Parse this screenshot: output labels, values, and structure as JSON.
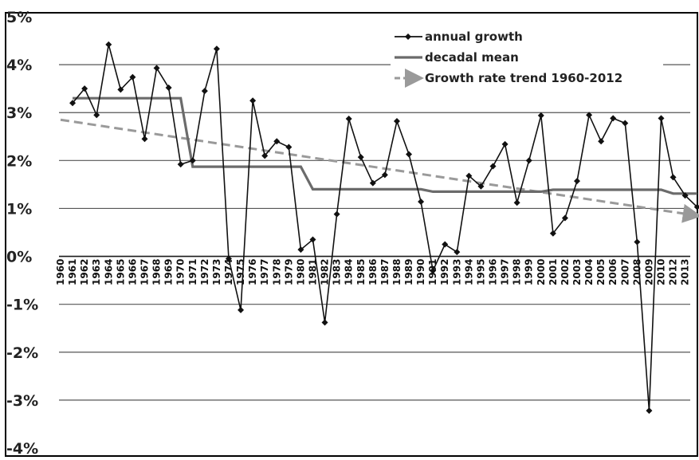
{
  "chart_data": {
    "type": "line",
    "title": "",
    "xlabel": "",
    "ylabel": "",
    "ylim": [
      -4,
      5
    ],
    "y_ticks": [
      "5%",
      "4%",
      "3%",
      "2%",
      "1%",
      "0%",
      "-1%",
      "-2%",
      "-3%",
      "-4%"
    ],
    "y_tick_values": [
      5,
      4,
      3,
      2,
      1,
      0,
      -1,
      -2,
      -3,
      -4
    ],
    "grid": true,
    "legend_position": "top-right",
    "x": [
      "1960",
      "1961",
      "1962",
      "1963",
      "1964",
      "1965",
      "1966",
      "1967",
      "1968",
      "1969",
      "1970",
      "1971",
      "1972",
      "1973",
      "1974",
      "1975",
      "1976",
      "1977",
      "1978",
      "1979",
      "1980",
      "1981",
      "1982",
      "1983",
      "1984",
      "1985",
      "1986",
      "1987",
      "1988",
      "1989",
      "1990",
      "1991",
      "1992",
      "1993",
      "1994",
      "1995",
      "1996",
      "1997",
      "1998",
      "1999",
      "2000",
      "2001",
      "2002",
      "2003",
      "2004",
      "2005",
      "2006",
      "2007",
      "2008",
      "2009",
      "2010",
      "2012",
      "2013"
    ],
    "series": [
      {
        "name": "annual growth",
        "color": "#111111",
        "style": "solid-with-diamond-markers",
        "points": [
          [
            1961,
            3.2
          ],
          [
            1962,
            3.5
          ],
          [
            1963,
            2.95
          ],
          [
            1964,
            4.42
          ],
          [
            1965,
            3.48
          ],
          [
            1966,
            3.74
          ],
          [
            1967,
            2.45
          ],
          [
            1968,
            3.93
          ],
          [
            1969,
            3.52
          ],
          [
            1970,
            1.92
          ],
          [
            1971,
            2.0
          ],
          [
            1972,
            3.45
          ],
          [
            1973,
            4.33
          ],
          [
            1974,
            -0.05
          ],
          [
            1975,
            -1.12
          ],
          [
            1976,
            3.25
          ],
          [
            1977,
            2.1
          ],
          [
            1978,
            2.4
          ],
          [
            1979,
            2.28
          ],
          [
            1980,
            0.14
          ],
          [
            1981,
            0.35
          ],
          [
            1982,
            -1.38
          ],
          [
            1983,
            0.88
          ],
          [
            1984,
            2.87
          ],
          [
            1985,
            2.07
          ],
          [
            1986,
            1.53
          ],
          [
            1987,
            1.7
          ],
          [
            1988,
            2.82
          ],
          [
            1989,
            2.13
          ],
          [
            1990,
            1.14
          ],
          [
            1991,
            -0.3
          ],
          [
            1992,
            0.25
          ],
          [
            1993,
            0.09
          ],
          [
            1994,
            1.68
          ],
          [
            1995,
            1.46
          ],
          [
            1996,
            1.88
          ],
          [
            1997,
            2.34
          ],
          [
            1998,
            1.12
          ],
          [
            1999,
            2.0
          ],
          [
            2000,
            2.94
          ],
          [
            2001,
            0.48
          ],
          [
            2002,
            0.8
          ],
          [
            2003,
            1.57
          ],
          [
            2004,
            2.95
          ],
          [
            2005,
            2.4
          ],
          [
            2006,
            2.88
          ],
          [
            2007,
            2.78
          ],
          [
            2008,
            0.3
          ],
          [
            2009,
            -3.22
          ],
          [
            2010,
            2.88
          ],
          [
            2011,
            1.65
          ],
          [
            2012,
            1.27
          ],
          [
            2013,
            1.03
          ]
        ]
      },
      {
        "name": "decadal mean",
        "color": "#6b6b6b",
        "style": "solid-thick-step",
        "points": [
          [
            1961,
            3.3
          ],
          [
            1970,
            3.3
          ],
          [
            1971,
            1.87
          ],
          [
            1980,
            1.87
          ],
          [
            1981,
            1.4
          ],
          [
            1990,
            1.4
          ],
          [
            1991,
            1.35
          ],
          [
            2000,
            1.35
          ],
          [
            2001,
            1.39
          ],
          [
            2010,
            1.39
          ],
          [
            2011,
            1.31
          ],
          [
            2013,
            1.31
          ]
        ]
      },
      {
        "name": "Growth rate trend 1960-2012",
        "color": "#9a9a9a",
        "style": "dashed-arrow",
        "points": [
          [
            1960,
            2.85
          ],
          [
            2013,
            0.85
          ]
        ]
      }
    ]
  }
}
